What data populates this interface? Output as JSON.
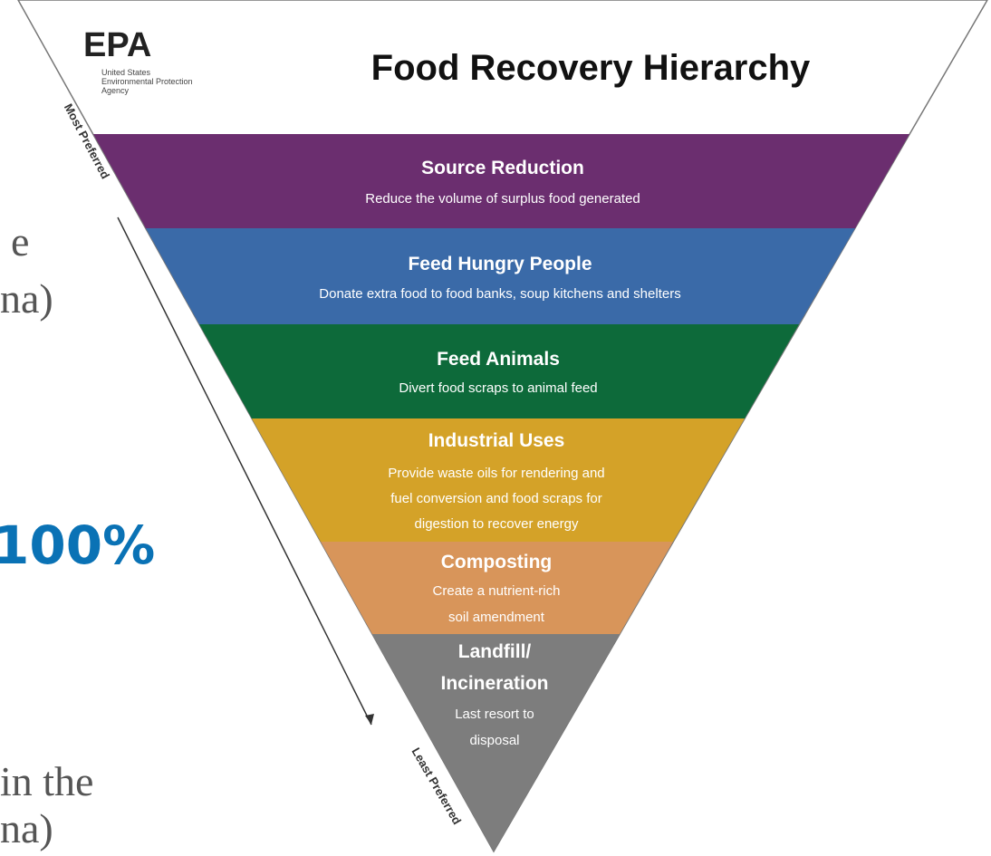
{
  "side_text": [
    "e",
    "na)",
    "100%",
    "in the",
    "na)"
  ],
  "header": {
    "logo": "EPA",
    "agency": [
      "United States",
      "Environmental Protection",
      "Agency"
    ],
    "title": "Food Recovery Hierarchy"
  },
  "axis": {
    "most": "Most Preferred",
    "least": "Least Preferred"
  },
  "tiers": [
    {
      "title": [
        "Source Reduction"
      ],
      "lines": [
        "Reduce the volume of surplus food generated"
      ]
    },
    {
      "title": [
        "Feed Hungry People"
      ],
      "lines": [
        "Donate extra food to food banks, soup kitchens and shelters"
      ]
    },
    {
      "title": [
        "Feed Animals"
      ],
      "lines": [
        "Divert food scraps to animal feed"
      ]
    },
    {
      "title": [
        "Industrial Uses"
      ],
      "lines": [
        "Provide waste oils for rendering and",
        "fuel conversion and food scraps for",
        "digestion to recover energy"
      ]
    },
    {
      "title": [
        "Composting"
      ],
      "lines": [
        "Create a nutrient-rich",
        "soil amendment"
      ]
    },
    {
      "title": [
        "Landfill/",
        "Incineration"
      ],
      "lines": [
        "Last resort to",
        "disposal"
      ]
    }
  ]
}
